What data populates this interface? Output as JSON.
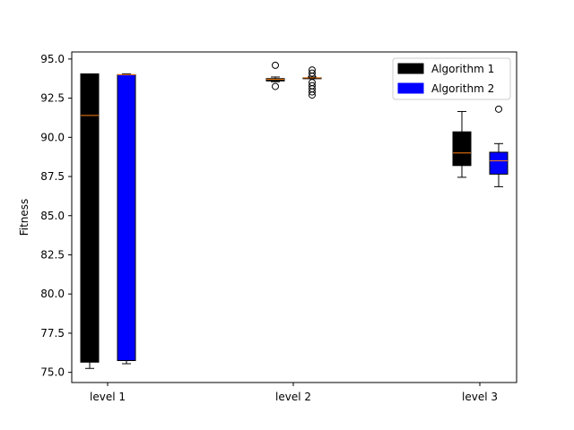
{
  "chart_data": {
    "type": "box",
    "title": "",
    "xlabel": "",
    "ylabel": "Fitness",
    "ylim": [
      74.35,
      95.45
    ],
    "yticks": [
      "75.0",
      "77.5",
      "80.0",
      "82.5",
      "85.0",
      "87.5",
      "90.0",
      "92.5",
      "95.0"
    ],
    "categories": [
      "level 1",
      "level 2",
      "level 3"
    ],
    "legend_position": "top-right",
    "grid": false,
    "series": [
      {
        "name": "Algorithm 1",
        "color": "#000000",
        "boxes": [
          {
            "category": "level 1",
            "whisker_low": 75.25,
            "q1": 75.65,
            "median": 91.4,
            "q3": 94.05,
            "whisker_high": 94.05,
            "outliers": []
          },
          {
            "category": "level 2",
            "whisker_low": 93.55,
            "q1": 93.6,
            "median": 93.7,
            "q3": 93.75,
            "whisker_high": 93.85,
            "outliers": [
              94.6,
              93.25
            ]
          },
          {
            "category": "level 3",
            "whisker_low": 87.45,
            "q1": 88.2,
            "median": 89.0,
            "q3": 90.35,
            "whisker_high": 91.65,
            "outliers": []
          }
        ]
      },
      {
        "name": "Algorithm 2",
        "color": "#0000ff",
        "boxes": [
          {
            "category": "level 1",
            "whisker_low": 75.55,
            "q1": 75.75,
            "median": 94.0,
            "q3": 94.0,
            "whisker_high": 94.05,
            "outliers": []
          },
          {
            "category": "level 2",
            "whisker_low": 93.75,
            "q1": 93.75,
            "median": 93.8,
            "q3": 93.8,
            "whisker_high": 93.85,
            "outliers": [
              94.3,
              94.1,
              93.9,
              93.5,
              93.3,
              93.1,
              92.9,
              92.7
            ]
          },
          {
            "category": "level 3",
            "whisker_low": 86.85,
            "q1": 87.65,
            "median": 88.5,
            "q3": 89.05,
            "whisker_high": 89.6,
            "outliers": [
              91.8
            ]
          }
        ]
      }
    ]
  }
}
